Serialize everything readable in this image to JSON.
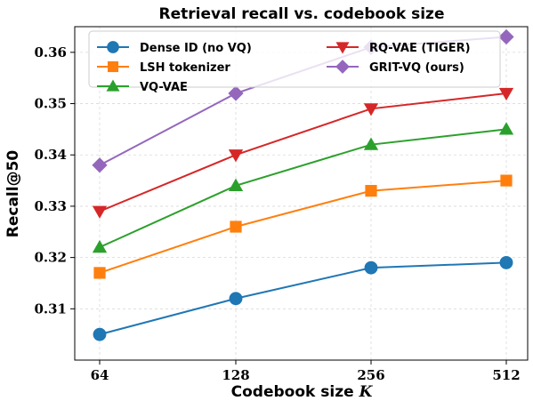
{
  "chart_data": {
    "type": "line",
    "title": "Retrieval recall vs. codebook size",
    "xlabel_prefix": "Codebook size ",
    "xlabel_var": "K",
    "ylabel": "Recall@50",
    "categories": [
      "64",
      "128",
      "256",
      "512"
    ],
    "ylim": [
      0.3,
      0.365
    ],
    "yticks": [
      0.31,
      0.32,
      0.33,
      0.34,
      0.35,
      0.36
    ],
    "ytick_labels": [
      "0.31",
      "0.32",
      "0.33",
      "0.34",
      "0.35",
      "0.36"
    ],
    "grid": true,
    "legend_position": "top",
    "series": [
      {
        "name": "Dense ID (no VQ)",
        "values": [
          0.305,
          0.312,
          0.318,
          0.319
        ],
        "color": "#1f77b4",
        "marker": "circle"
      },
      {
        "name": "LSH tokenizer",
        "values": [
          0.317,
          0.326,
          0.333,
          0.335
        ],
        "color": "#ff7f0e",
        "marker": "square"
      },
      {
        "name": "VQ-VAE",
        "values": [
          0.322,
          0.334,
          0.342,
          0.345
        ],
        "color": "#2ca02c",
        "marker": "triangle-up"
      },
      {
        "name": "RQ-VAE (TIGER)",
        "values": [
          0.329,
          0.34,
          0.349,
          0.352
        ],
        "color": "#d62728",
        "marker": "triangle-down"
      },
      {
        "name": "GRIT-VQ (ours)",
        "values": [
          0.338,
          0.352,
          0.361,
          0.363
        ],
        "color": "#9467bd",
        "marker": "diamond"
      }
    ]
  }
}
